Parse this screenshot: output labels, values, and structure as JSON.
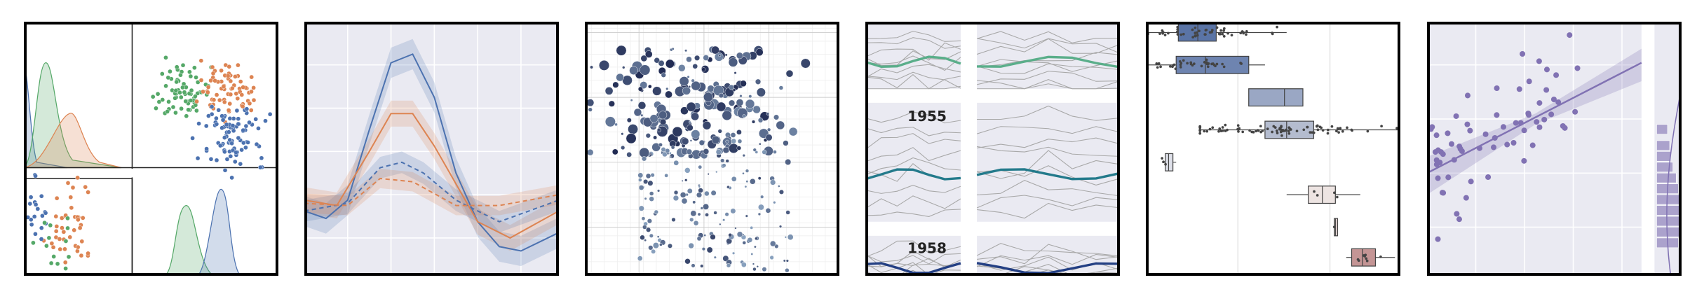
{
  "facet_panel": {
    "labels": [
      "1955",
      "1958"
    ]
  }
}
